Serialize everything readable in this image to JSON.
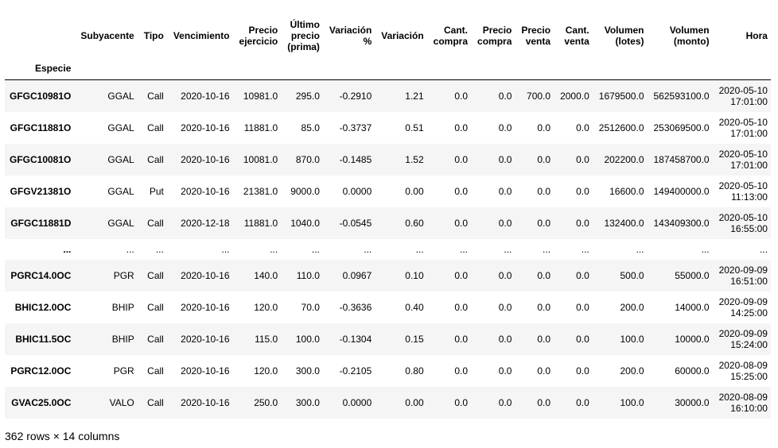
{
  "columns": [
    [
      "",
      "Especie"
    ],
    [
      "Subyacente"
    ],
    [
      "Tipo"
    ],
    [
      "Vencimiento"
    ],
    [
      "Precio",
      "ejercicio"
    ],
    [
      "Último",
      "precio",
      "(prima)"
    ],
    [
      "Variación",
      "%"
    ],
    [
      "Variación"
    ],
    [
      "Cant.",
      "compra"
    ],
    [
      "Precio",
      "compra"
    ],
    [
      "Precio",
      "venta"
    ],
    [
      "Cant.",
      "venta"
    ],
    [
      "Volumen",
      "(lotes)"
    ],
    [
      "Volumen",
      "(monto)"
    ],
    [
      "Hora"
    ]
  ],
  "index_name": "Especie",
  "rows": [
    {
      "especie": "GFGC10981O",
      "sub": "GGAL",
      "tipo": "Call",
      "venc": "2020-10-16",
      "pej": "10981.0",
      "ult": "295.0",
      "varp": "-0.2910",
      "var": "1.21",
      "cc": "0.0",
      "pc": "0.0",
      "pv": "700.0",
      "cv": "2000.0",
      "vl": "1679500.0",
      "vm": "562593100.0",
      "hora_d": "2020-05-10",
      "hora_t": "17:01:00"
    },
    {
      "especie": "GFGC11881O",
      "sub": "GGAL",
      "tipo": "Call",
      "venc": "2020-10-16",
      "pej": "11881.0",
      "ult": "85.0",
      "varp": "-0.3737",
      "var": "0.51",
      "cc": "0.0",
      "pc": "0.0",
      "pv": "0.0",
      "cv": "0.0",
      "vl": "2512600.0",
      "vm": "253069500.0",
      "hora_d": "2020-05-10",
      "hora_t": "17:01:00"
    },
    {
      "especie": "GFGC10081O",
      "sub": "GGAL",
      "tipo": "Call",
      "venc": "2020-10-16",
      "pej": "10081.0",
      "ult": "870.0",
      "varp": "-0.1485",
      "var": "1.52",
      "cc": "0.0",
      "pc": "0.0",
      "pv": "0.0",
      "cv": "0.0",
      "vl": "202200.0",
      "vm": "187458700.0",
      "hora_d": "2020-05-10",
      "hora_t": "17:01:00"
    },
    {
      "especie": "GFGV21381O",
      "sub": "GGAL",
      "tipo": "Put",
      "venc": "2020-10-16",
      "pej": "21381.0",
      "ult": "9000.0",
      "varp": "0.0000",
      "var": "0.00",
      "cc": "0.0",
      "pc": "0.0",
      "pv": "0.0",
      "cv": "0.0",
      "vl": "16600.0",
      "vm": "149400000.0",
      "hora_d": "2020-05-10",
      "hora_t": "11:13:00"
    },
    {
      "especie": "GFGC11881D",
      "sub": "GGAL",
      "tipo": "Call",
      "venc": "2020-12-18",
      "pej": "11881.0",
      "ult": "1040.0",
      "varp": "-0.0545",
      "var": "0.60",
      "cc": "0.0",
      "pc": "0.0",
      "pv": "0.0",
      "cv": "0.0",
      "vl": "132400.0",
      "vm": "143409300.0",
      "hora_d": "2020-05-10",
      "hora_t": "16:55:00"
    },
    {
      "especie": "...",
      "sub": "...",
      "tipo": "...",
      "venc": "...",
      "pej": "...",
      "ult": "...",
      "varp": "...",
      "var": "...",
      "cc": "...",
      "pc": "...",
      "pv": "...",
      "cv": "...",
      "vl": "...",
      "vm": "...",
      "hora_d": "...",
      "hora_t": ""
    },
    {
      "especie": "PGRC14.0OC",
      "sub": "PGR",
      "tipo": "Call",
      "venc": "2020-10-16",
      "pej": "140.0",
      "ult": "110.0",
      "varp": "0.0967",
      "var": "0.10",
      "cc": "0.0",
      "pc": "0.0",
      "pv": "0.0",
      "cv": "0.0",
      "vl": "500.0",
      "vm": "55000.0",
      "hora_d": "2020-09-09",
      "hora_t": "16:51:00"
    },
    {
      "especie": "BHIC12.0OC",
      "sub": "BHIP",
      "tipo": "Call",
      "venc": "2020-10-16",
      "pej": "120.0",
      "ult": "70.0",
      "varp": "-0.3636",
      "var": "0.40",
      "cc": "0.0",
      "pc": "0.0",
      "pv": "0.0",
      "cv": "0.0",
      "vl": "200.0",
      "vm": "14000.0",
      "hora_d": "2020-09-09",
      "hora_t": "14:25:00"
    },
    {
      "especie": "BHIC11.5OC",
      "sub": "BHIP",
      "tipo": "Call",
      "venc": "2020-10-16",
      "pej": "115.0",
      "ult": "100.0",
      "varp": "-0.1304",
      "var": "0.15",
      "cc": "0.0",
      "pc": "0.0",
      "pv": "0.0",
      "cv": "0.0",
      "vl": "100.0",
      "vm": "10000.0",
      "hora_d": "2020-09-09",
      "hora_t": "15:24:00"
    },
    {
      "especie": "PGRC12.0OC",
      "sub": "PGR",
      "tipo": "Call",
      "venc": "2020-10-16",
      "pej": "120.0",
      "ult": "300.0",
      "varp": "-0.2105",
      "var": "0.80",
      "cc": "0.0",
      "pc": "0.0",
      "pv": "0.0",
      "cv": "0.0",
      "vl": "200.0",
      "vm": "60000.0",
      "hora_d": "2020-08-09",
      "hora_t": "15:25:00"
    },
    {
      "especie": "GVAC25.0OC",
      "sub": "VALO",
      "tipo": "Call",
      "venc": "2020-10-16",
      "pej": "250.0",
      "ult": "300.0",
      "varp": "0.0000",
      "var": "0.00",
      "cc": "0.0",
      "pc": "0.0",
      "pv": "0.0",
      "cv": "0.0",
      "vl": "100.0",
      "vm": "30000.0",
      "hora_d": "2020-08-09",
      "hora_t": "16:10:00"
    }
  ],
  "footer": "362 rows × 14 columns"
}
